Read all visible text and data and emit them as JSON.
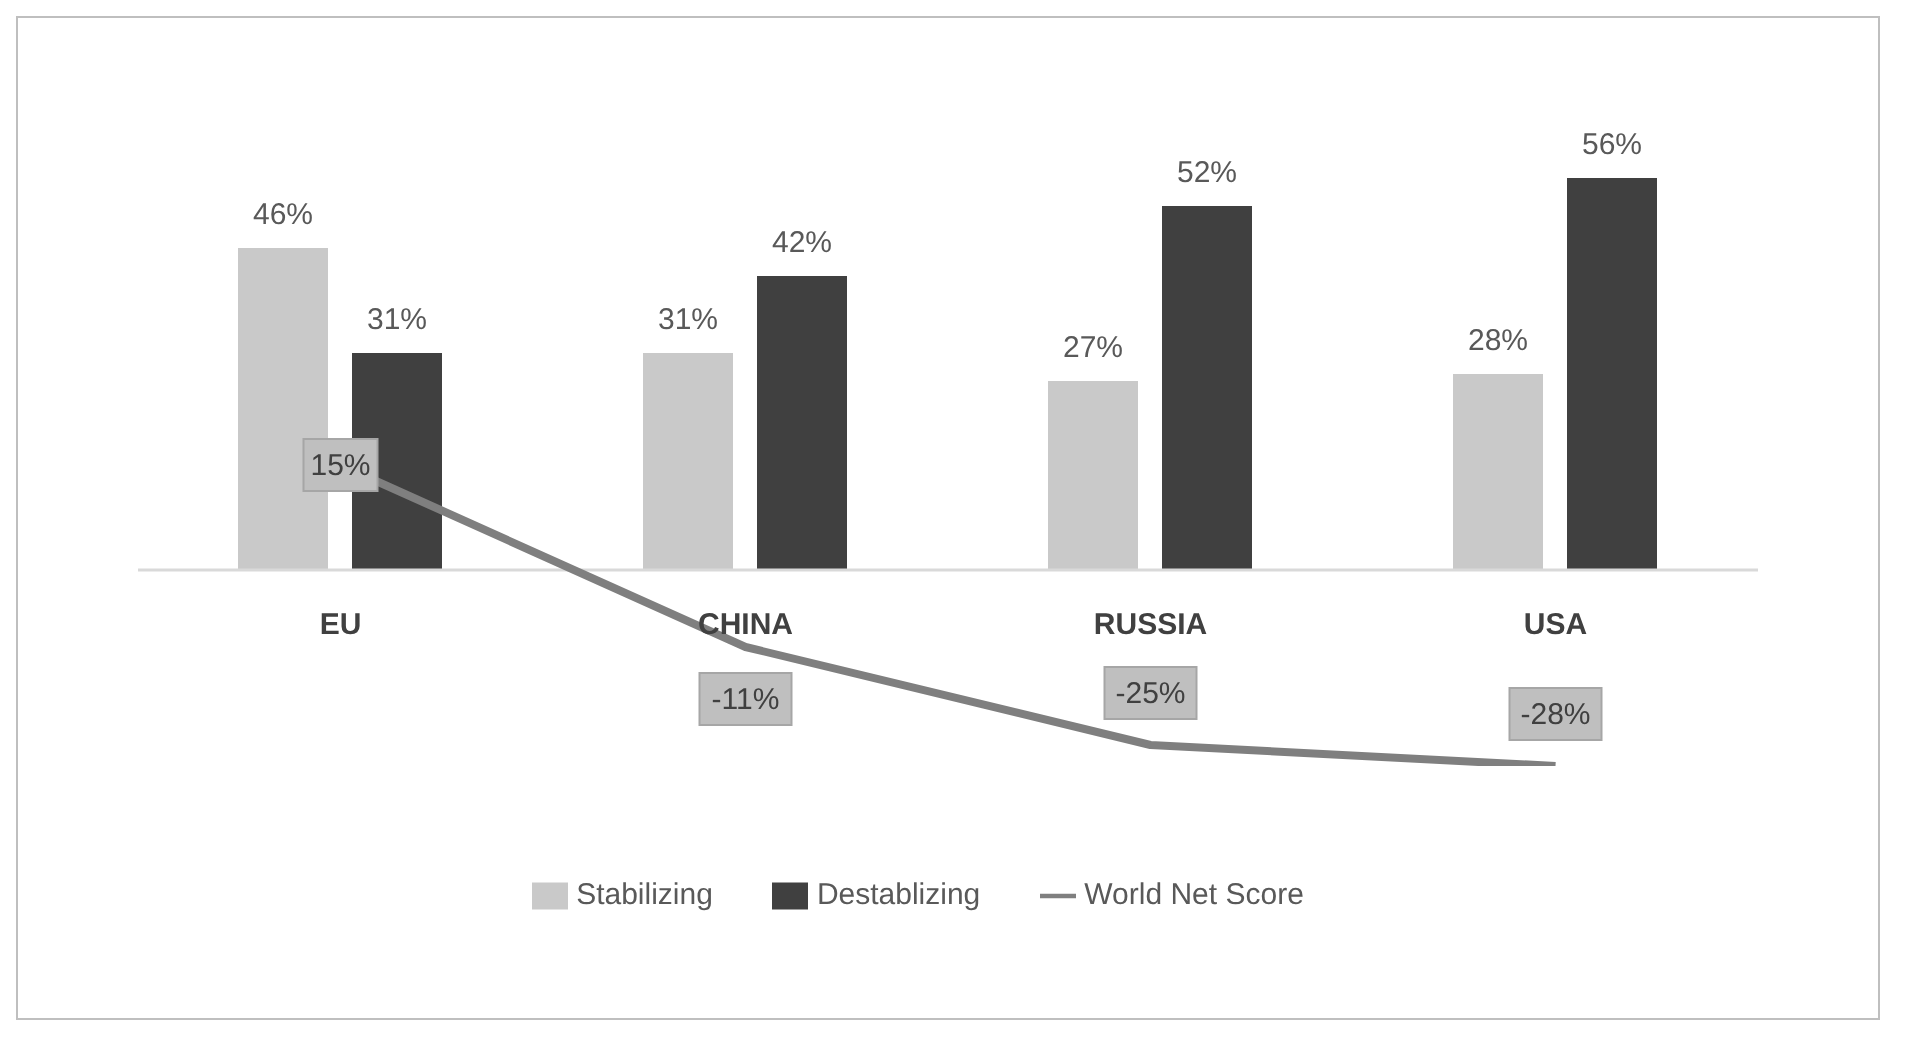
{
  "chart_data": {
    "type": "bar",
    "categories": [
      "EU",
      "CHINA",
      "RUSSIA",
      "USA"
    ],
    "series": [
      {
        "name": "Stabilizing",
        "color": "#c9c9c9",
        "values": [
          46,
          31,
          27,
          28
        ],
        "value_labels": [
          "46%",
          "31%",
          "27%",
          "28%"
        ]
      },
      {
        "name": "Destablizing",
        "color": "#404040",
        "values": [
          31,
          42,
          52,
          56
        ],
        "value_labels": [
          "31%",
          "42%",
          "52%",
          "56%"
        ]
      },
      {
        "name": "World Net Score",
        "type": "line",
        "color": "#7f7f7f",
        "values": [
          15,
          -11,
          -25,
          -28
        ],
        "value_labels": [
          "15%",
          "-11%",
          "-25%",
          "-28%"
        ]
      }
    ],
    "tick_labels": "x",
    "legend": "bottom",
    "marker": "none"
  }
}
